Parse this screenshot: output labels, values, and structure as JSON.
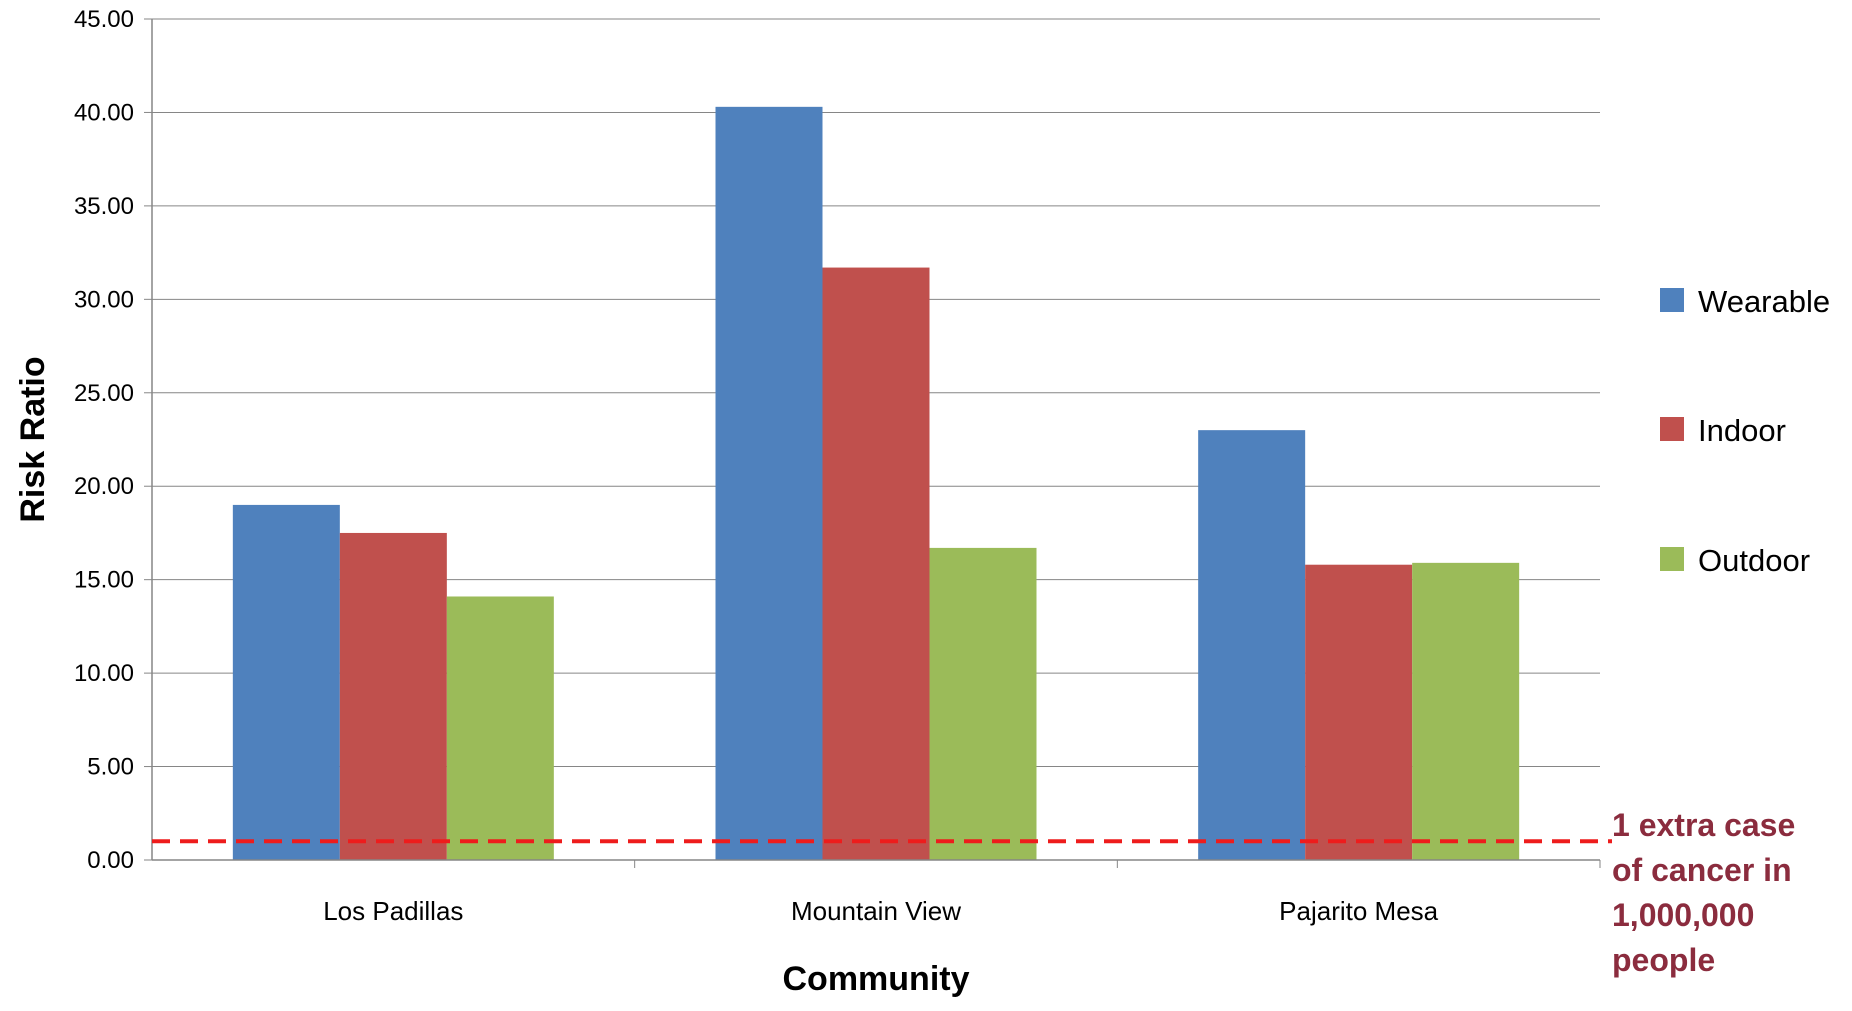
{
  "chart_data": {
    "type": "bar",
    "categories": [
      "Los Padillas",
      "Mountain View",
      "Pajarito Mesa"
    ],
    "series": [
      {
        "name": "Wearable",
        "color": "#4F81BD",
        "values": [
          19.0,
          40.3,
          23.0
        ]
      },
      {
        "name": "Indoor",
        "color": "#C0504D",
        "values": [
          17.5,
          31.7,
          15.8
        ]
      },
      {
        "name": "Outdoor",
        "color": "#9BBB59",
        "values": [
          14.1,
          16.7,
          15.9
        ]
      }
    ],
    "xlabel": "Community",
    "ylabel": "Risk Ratio",
    "ylim": [
      0,
      45
    ],
    "yticks": [
      0,
      5,
      10,
      15,
      20,
      25,
      30,
      35,
      40,
      45
    ],
    "ytick_labels": [
      "0.00",
      "5.00",
      "10.00",
      "15.00",
      "20.00",
      "25.00",
      "30.00",
      "35.00",
      "40.00",
      "45.00"
    ],
    "grid": true,
    "legend_position": "right",
    "reference_line": {
      "value": 1,
      "style": "dashed",
      "color": "#EE1C1C",
      "label_lines": [
        "1 extra case",
        "of cancer in",
        "1,000,000",
        "people"
      ],
      "label_color": "#8B2C3E"
    }
  }
}
